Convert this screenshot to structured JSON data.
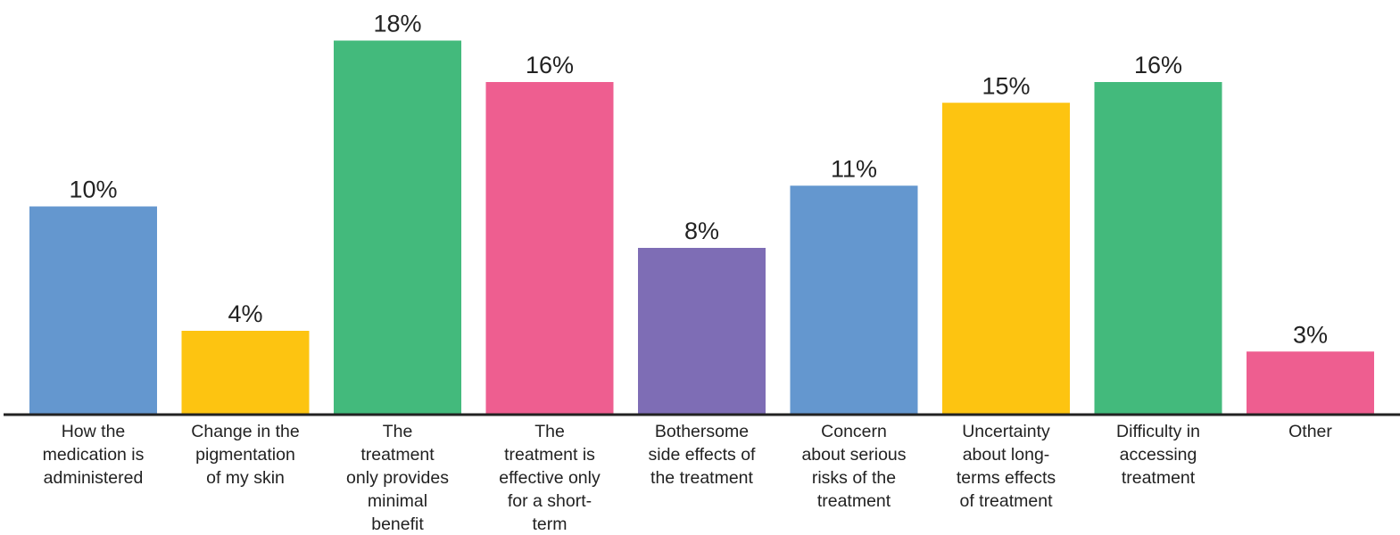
{
  "chart_data": {
    "type": "bar",
    "title": "",
    "xlabel": "",
    "ylabel": "",
    "ylim": [
      0,
      19.5
    ],
    "grid": false,
    "legend": "none",
    "categories": [
      [
        "How the",
        "medication is",
        "administered"
      ],
      [
        "Change in the",
        "pigmentation",
        "of my skin"
      ],
      [
        "The",
        "treatment",
        "only provides",
        "minimal",
        "benefit"
      ],
      [
        "The",
        "treatment is",
        "effective only",
        "for a short-",
        "term"
      ],
      [
        "Bothersome",
        "side effects of",
        "the treatment"
      ],
      [
        "Concern",
        "about serious",
        "risks of the",
        "treatment"
      ],
      [
        "Uncertainty",
        "about long-",
        "terms effects",
        "of treatment"
      ],
      [
        "Difficulty in",
        "accessing",
        "treatment"
      ],
      [
        "Other"
      ]
    ],
    "values": [
      10,
      4,
      18,
      16,
      8,
      11,
      15,
      16,
      3
    ],
    "value_labels": [
      "10%",
      "4%",
      "18%",
      "16%",
      "8%",
      "11%",
      "15%",
      "16%",
      "3%"
    ],
    "colors": [
      "#6497CF",
      "#FDC411",
      "#43BA7C",
      "#EE5E90",
      "#7E6DB5",
      "#6497CF",
      "#FDC411",
      "#43BA7C",
      "#EE5E90"
    ],
    "axis_color": "#222222"
  }
}
